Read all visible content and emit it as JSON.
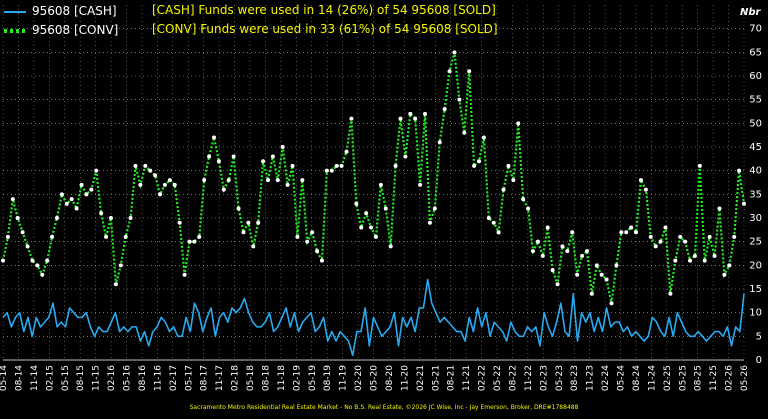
{
  "legend": {
    "cash": "95608 [CASH]",
    "conv": "95608 [CONV]"
  },
  "headline": {
    "cash": "[CASH] Funds were used in 14 (26%) of 54 95608 [SOLD]",
    "conv": "[CONV] Funds were used in 33 (61%) of 54 95608 [SOLD]"
  },
  "footer": "Sacramento Metro Residential Real Estate Market - No B.S. Real Estate, ©2026 JC Wise, Inc - Jay Emerson, Broker, DRE#1788488",
  "colors": {
    "cash": "#29aaf0",
    "conv": "#22ee22",
    "text": "#f6f600",
    "grid": "#ffffff",
    "background": "#000000"
  },
  "chart_data": {
    "type": "line",
    "ylabel": "Nbr",
    "ylim": [
      0,
      75
    ],
    "yticks": [
      0,
      5,
      10,
      15,
      20,
      25,
      30,
      35,
      40,
      45,
      50,
      55,
      60,
      65,
      70
    ],
    "grid": true,
    "legend_position": "top-left",
    "x_tick_labels": [
      "05-14",
      "08-14",
      "11-14",
      "02-15",
      "05-15",
      "08-15",
      "11-15",
      "02-16",
      "05-16",
      "08-16",
      "11-16",
      "02-17",
      "05-17",
      "08-17",
      "11-17",
      "02-18",
      "05-18",
      "08-18",
      "11-18",
      "02-19",
      "05-19",
      "08-19",
      "11-19",
      "02-20",
      "05-20",
      "08-20",
      "11-20",
      "02-21",
      "05-21",
      "08-21",
      "11-21",
      "02-22",
      "05-22",
      "08-22",
      "11-22",
      "02-23",
      "05-23",
      "08-23",
      "11-23",
      "02-24",
      "05-24",
      "08-24",
      "11-24",
      "02-25",
      "05-25",
      "08-25",
      "11-25",
      "02-26",
      "05-26"
    ],
    "series": [
      {
        "name": "95608 [CASH]",
        "values": [
          9,
          10,
          7,
          9,
          10,
          6,
          9,
          5,
          9,
          7,
          8,
          9,
          12,
          7,
          8,
          7,
          11,
          10,
          9,
          9,
          10,
          7,
          5,
          7,
          6,
          6,
          8,
          10,
          6,
          7,
          6,
          7,
          7,
          4,
          6,
          3,
          6,
          7,
          9,
          8,
          6,
          7,
          5,
          5,
          9,
          6,
          12,
          10,
          6,
          9,
          11,
          5,
          9,
          10,
          8,
          11,
          10,
          11,
          13,
          10,
          8,
          7,
          7,
          8,
          10,
          6,
          7,
          9,
          11,
          7,
          10,
          6,
          8,
          9,
          10,
          6,
          7,
          9,
          4,
          6,
          4,
          6,
          5,
          4,
          1,
          6,
          6,
          11,
          3,
          9,
          7,
          5,
          6,
          7,
          10,
          3,
          9,
          7,
          9,
          6,
          11,
          11,
          17,
          12,
          10,
          8,
          9,
          8,
          7,
          6,
          6,
          4,
          9,
          6,
          11,
          7,
          10,
          5,
          8,
          7,
          6,
          4,
          8,
          6,
          5,
          5,
          7,
          6,
          7,
          3,
          10,
          7,
          5,
          8,
          12,
          6,
          5,
          14,
          4,
          10,
          8,
          10,
          6,
          9,
          6,
          11,
          7,
          8,
          8,
          6,
          7,
          5,
          6,
          5,
          4,
          5,
          9,
          8,
          6,
          5,
          9,
          5,
          10,
          8,
          6,
          5,
          5,
          6,
          5,
          4,
          5,
          6,
          6,
          5,
          7,
          3,
          7,
          6,
          14
        ]
      },
      {
        "name": "95608 [CONV]",
        "values": [
          21,
          26,
          34,
          30,
          27,
          24,
          21,
          20,
          18,
          21,
          26,
          30,
          35,
          33,
          34,
          32,
          37,
          35,
          36,
          40,
          31,
          26,
          30,
          16,
          20,
          26,
          30,
          41,
          37,
          41,
          40,
          39,
          35,
          37,
          38,
          37,
          29,
          18,
          25,
          25,
          26,
          38,
          43,
          47,
          42,
          36,
          38,
          43,
          32,
          27,
          29,
          24,
          29,
          42,
          38,
          43,
          38,
          45,
          37,
          41,
          26,
          38,
          25,
          27,
          23,
          21,
          40,
          40,
          41,
          41,
          44,
          51,
          33,
          28,
          31,
          28,
          26,
          37,
          32,
          24,
          41,
          51,
          43,
          52,
          51,
          37,
          52,
          29,
          32,
          46,
          53,
          61,
          65,
          55,
          48,
          61,
          41,
          42,
          47,
          30,
          29,
          27,
          36,
          41,
          38,
          50,
          34,
          32,
          23,
          25,
          22,
          28,
          19,
          16,
          24,
          23,
          27,
          18,
          22,
          23,
          14,
          20,
          18,
          17,
          12,
          20,
          27,
          27,
          28,
          27,
          38,
          36,
          26,
          24,
          25,
          28,
          14,
          21,
          26,
          25,
          21,
          22,
          41,
          21,
          26,
          22,
          32,
          18,
          20,
          26,
          40,
          33
        ]
      }
    ]
  }
}
